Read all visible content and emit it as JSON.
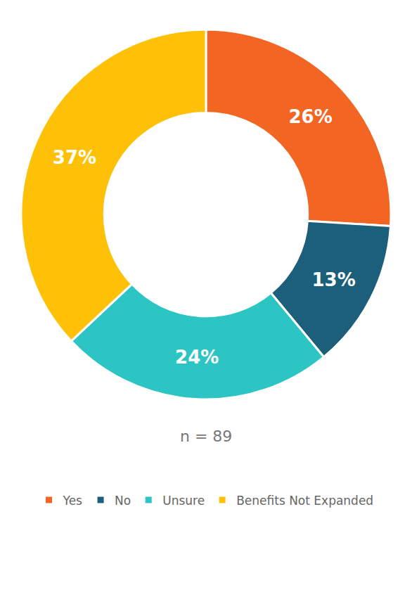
{
  "chart_data": {
    "type": "pie",
    "categories": [
      "Yes",
      "No",
      "Unsure",
      "Benefits Not Expanded"
    ],
    "values": [
      26,
      13,
      24,
      37
    ],
    "value_labels": [
      "26%",
      "13%",
      "24%",
      "37%"
    ],
    "colors": [
      "#F26522",
      "#1C5F7A",
      "#2DC5C3",
      "#FFC107"
    ],
    "data_labels": true,
    "legend": "bottom",
    "annotations": [
      "n = 89"
    ]
  }
}
